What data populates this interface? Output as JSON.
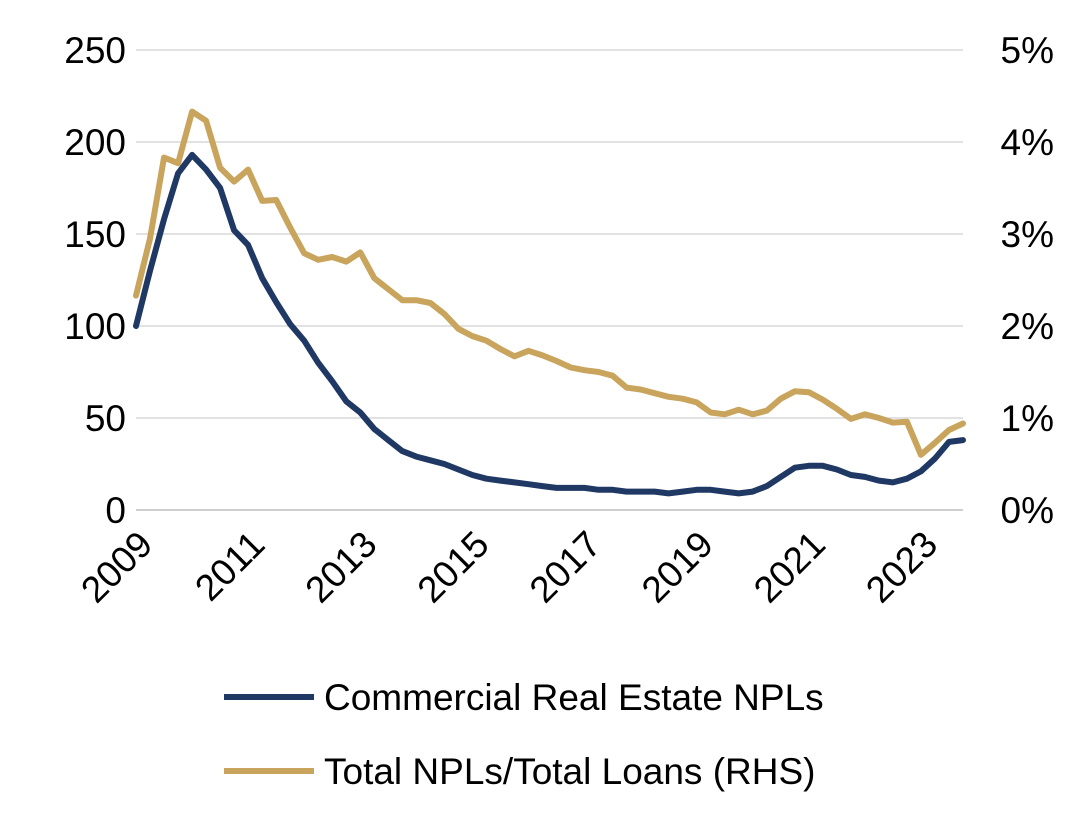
{
  "chart_data": {
    "type": "line",
    "x_ticks": [
      "2009",
      "2011",
      "2013",
      "2015",
      "2017",
      "2019",
      "2021",
      "2023"
    ],
    "y_left": {
      "ticks": [
        "0",
        "50",
        "100",
        "150",
        "200",
        "250"
      ],
      "range": [
        0,
        250
      ]
    },
    "y_right": {
      "ticks": [
        "0%",
        "1%",
        "2%",
        "3%",
        "4%",
        "5%"
      ],
      "range": [
        0,
        5
      ]
    },
    "x_range": [
      2009,
      2023.75
    ],
    "grid": "horizontal",
    "legend_position": "bottom",
    "series": [
      {
        "name": "Commercial Real Estate NPLs",
        "axis": "left",
        "color": "#1f3864",
        "x": [
          2009.0,
          2009.25,
          2009.5,
          2009.75,
          2010.0,
          2010.25,
          2010.5,
          2010.75,
          2011.0,
          2011.25,
          2011.5,
          2011.75,
          2012.0,
          2012.25,
          2012.5,
          2012.75,
          2013.0,
          2013.25,
          2013.5,
          2013.75,
          2014.0,
          2014.25,
          2014.5,
          2014.75,
          2015.0,
          2015.25,
          2015.5,
          2015.75,
          2016.0,
          2016.25,
          2016.5,
          2016.75,
          2017.0,
          2017.25,
          2017.5,
          2017.75,
          2018.0,
          2018.25,
          2018.5,
          2018.75,
          2019.0,
          2019.25,
          2019.5,
          2019.75,
          2020.0,
          2020.25,
          2020.5,
          2020.75,
          2021.0,
          2021.25,
          2021.5,
          2021.75,
          2022.0,
          2022.25,
          2022.5,
          2022.75,
          2023.0,
          2023.25,
          2023.5,
          2023.75
        ],
        "values": [
          100,
          130,
          158,
          183,
          193,
          185,
          175,
          152,
          144,
          126,
          113,
          101,
          92,
          80,
          70,
          59,
          53,
          44,
          38,
          32,
          29,
          27,
          25,
          22,
          19,
          17,
          16,
          15,
          14,
          13,
          12,
          12,
          12,
          11,
          11,
          10,
          10,
          10,
          9,
          10,
          11,
          11,
          10,
          9,
          10,
          13,
          18,
          23,
          24,
          24,
          22,
          19,
          18,
          16,
          15,
          17,
          21,
          28,
          37,
          38
        ]
      },
      {
        "name": "Total NPLs/Total Loans (RHS)",
        "axis": "right",
        "color": "#c9a45c",
        "x": [
          2009.0,
          2009.25,
          2009.5,
          2009.75,
          2010.0,
          2010.25,
          2010.5,
          2010.75,
          2011.0,
          2011.25,
          2011.5,
          2011.75,
          2012.0,
          2012.25,
          2012.5,
          2012.75,
          2013.0,
          2013.25,
          2013.5,
          2013.75,
          2014.0,
          2014.25,
          2014.5,
          2014.75,
          2015.0,
          2015.25,
          2015.5,
          2015.75,
          2016.0,
          2016.25,
          2016.5,
          2016.75,
          2017.0,
          2017.25,
          2017.5,
          2017.75,
          2018.0,
          2018.25,
          2018.5,
          2018.75,
          2019.0,
          2019.25,
          2019.5,
          2019.75,
          2020.0,
          2020.25,
          2020.5,
          2020.75,
          2021.0,
          2021.25,
          2021.5,
          2021.75,
          2022.0,
          2022.25,
          2022.5,
          2022.75,
          2023.0,
          2023.25,
          2023.5,
          2023.75
        ],
        "values": [
          2.33,
          2.95,
          3.83,
          3.77,
          4.33,
          4.23,
          3.72,
          3.57,
          3.7,
          3.36,
          3.37,
          3.07,
          2.79,
          2.72,
          2.75,
          2.7,
          2.8,
          2.52,
          2.4,
          2.28,
          2.28,
          2.25,
          2.13,
          1.97,
          1.89,
          1.84,
          1.75,
          1.67,
          1.73,
          1.68,
          1.62,
          1.55,
          1.52,
          1.5,
          1.46,
          1.33,
          1.31,
          1.27,
          1.23,
          1.21,
          1.17,
          1.06,
          1.04,
          1.09,
          1.04,
          1.08,
          1.21,
          1.29,
          1.28,
          1.2,
          1.1,
          0.99,
          1.04,
          1.0,
          0.95,
          0.96,
          0.6,
          0.73,
          0.87,
          0.94
        ]
      }
    ]
  }
}
